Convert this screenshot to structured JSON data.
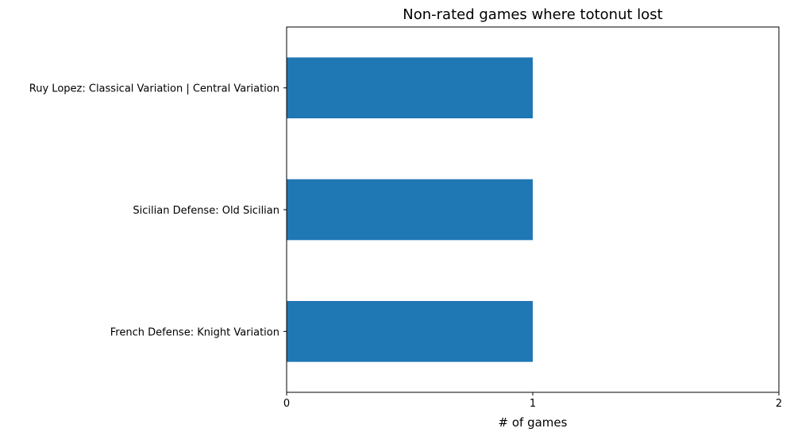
{
  "chart_data": {
    "type": "bar",
    "orientation": "horizontal",
    "title": "Non-rated games where totonut lost",
    "xlabel": "# of games",
    "ylabel": "",
    "categories": [
      "Ruy Lopez: Classical Variation |  Central Variation",
      "Sicilian Defense: Old Sicilian",
      "French Defense: Knight Variation"
    ],
    "values": [
      1,
      1,
      1
    ],
    "xlim": [
      0,
      2
    ],
    "xticks": [
      "0",
      "1",
      "2"
    ],
    "grid": false,
    "legend": "none",
    "bar_color": "#1f77b4"
  }
}
